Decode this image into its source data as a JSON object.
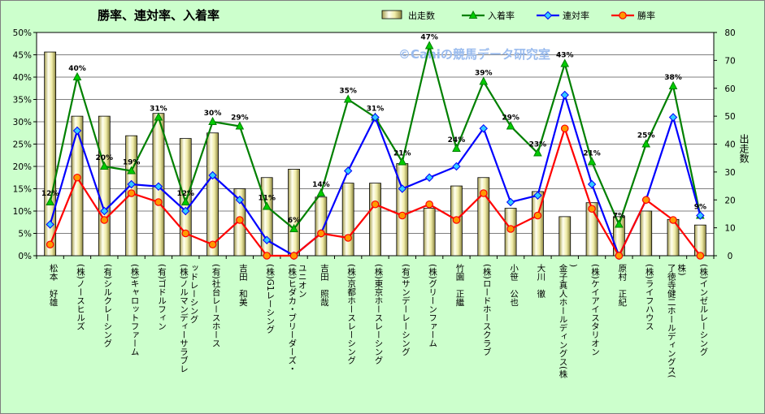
{
  "chart_data": {
    "type": "bar+line",
    "title": "勝率、連対率、入着率",
    "watermark": "©Caniの競馬データ研究室",
    "y_left": {
      "min": 0,
      "max": 50,
      "step": 5,
      "unit": "%"
    },
    "y_right": {
      "label": "出走数",
      "min": 0,
      "max": 80,
      "step": 10
    },
    "categories": [
      "松本　好雄",
      "(株)ノースヒルズ",
      "(有)シルクレーシング",
      "(株)キャロットファーム",
      "(有)ゴドルフィン",
      "(株)ノルマンディーサラブレッドレーシング",
      "(有)社台レースホース",
      "吉田　和美",
      "(株)G1レーシング",
      "(株)ヒダカ・ブリーダーズ・ユニオン",
      "吉田　照哉",
      "(株)京都ホースレーシング",
      "(株)東京ホースレーシング",
      "(有)サンデーレーシング",
      "(株)グリーンファーム",
      "竹園　正繼",
      "(株)ロードホースクラブ",
      "小笹　公也",
      "大川　徹",
      "金子真人ホールディングス(株)",
      "(株)ケイアイスタリオン",
      "原村　正紀",
      "(株)ライフハウス",
      "了徳寺健二ホールディングス(株)",
      "(株)インゼルレーシング"
    ],
    "series": [
      {
        "name": "出走数",
        "type": "bar",
        "axis": "right",
        "values": [
          73,
          50,
          50,
          43,
          51,
          42,
          44,
          24,
          28,
          31,
          21,
          26,
          26,
          33,
          17,
          25,
          28,
          17,
          23,
          14,
          19,
          14,
          16,
          13,
          11
        ]
      },
      {
        "name": "入着率",
        "type": "line",
        "axis": "left",
        "values": [
          12,
          40,
          20,
          19,
          31,
          12,
          30,
          29,
          11,
          6,
          14,
          35,
          31,
          21,
          47,
          24,
          39,
          29,
          23,
          43,
          21,
          7,
          25,
          38,
          9
        ]
      },
      {
        "name": "連対率",
        "type": "line",
        "axis": "left",
        "values": [
          7,
          28,
          10,
          16,
          15.5,
          10,
          18,
          12.5,
          3.5,
          0,
          5,
          19,
          31,
          15,
          17.5,
          20,
          28.5,
          12,
          13.5,
          36,
          16,
          0,
          12.5,
          31,
          9
        ]
      },
      {
        "name": "勝率",
        "type": "line",
        "axis": "left",
        "values": [
          2.5,
          17.5,
          8,
          14,
          12,
          5,
          2.5,
          8,
          0,
          0,
          5,
          4,
          11.5,
          9,
          11.5,
          8,
          14,
          6,
          9,
          28.5,
          10.5,
          0,
          12.5,
          8,
          0
        ]
      }
    ],
    "data_labels": {
      "series": "入着率",
      "values": [
        "12%",
        "40%",
        "20%",
        "19%",
        "31%",
        "12%",
        "30%",
        "29%",
        "11%",
        "6%",
        "14%",
        "35%",
        "31%",
        "21%",
        "47%",
        "24%",
        "39%",
        "29%",
        "23%",
        "43%",
        "21%",
        "7%",
        "25%",
        "38%",
        "9%"
      ]
    },
    "colors": {
      "background": "#ccffcc",
      "plot_background": "#ffffff",
      "bar_fill": "#e8e4a0",
      "bar_stroke": "#000000",
      "入着率": "#008000",
      "連対率": "#0000ff",
      "勝率": "#ff0000",
      "marker_入着率": "#00cc00",
      "marker_連対率": "#33ccff",
      "marker_勝率": "#ff9900"
    },
    "legend_position": "top"
  }
}
